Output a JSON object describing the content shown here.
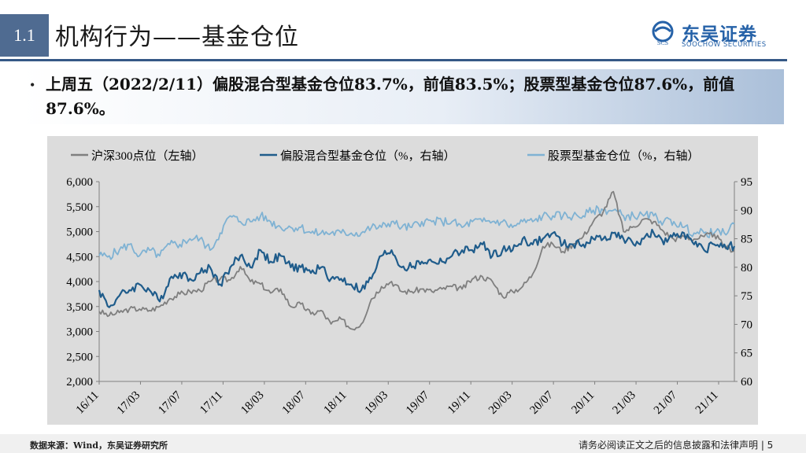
{
  "header": {
    "section_number": "1.1",
    "title": "机构行为——基金仓位"
  },
  "logo": {
    "cn": "东吴证券",
    "en": "SOOCHOW SECURITIES",
    "mark": "SCS"
  },
  "bullet": {
    "text": "上周五（2022/2/11）偏股混合型基金仓位83.7%，前值83.5%；股票型基金仓位87.6%，前值87.6%。"
  },
  "footer": {
    "source": "数据来源：Wind，东吴证券研究所",
    "disclaimer": "请务必阅读正文之后的信息披露和法律声明 | 5"
  },
  "colors": {
    "csi300": "#7f7f7f",
    "hybrid": "#1f5c8b",
    "stock": "#7fb2d3",
    "chart_bg": "#dcdcdc",
    "brand": "#2662a8"
  },
  "chart_data": {
    "type": "line",
    "grid": false,
    "legend_position": "top",
    "x_ticks": [
      "16/11",
      "17/03",
      "17/07",
      "17/11",
      "18/03",
      "18/07",
      "18/11",
      "19/03",
      "19/07",
      "19/11",
      "20/03",
      "20/07",
      "20/11",
      "21/03",
      "21/07",
      "21/11"
    ],
    "x_range": [
      "2016-11",
      "2022-02"
    ],
    "left_axis": {
      "min": 2000,
      "max": 6000,
      "ticks": [
        "2,000",
        "2,500",
        "3,000",
        "3,500",
        "4,000",
        "4,500",
        "5,000",
        "5,500",
        "6,000"
      ]
    },
    "right_axis": {
      "min": 60,
      "max": 95,
      "ticks": [
        "60",
        "65",
        "70",
        "75",
        "80",
        "85",
        "90",
        "95"
      ]
    },
    "series": [
      {
        "name": "沪深300点位（左轴）",
        "axis": "left",
        "color": "#7f7f7f",
        "x": [
          "2016-11",
          "2016-12",
          "2017-01",
          "2017-02",
          "2017-03",
          "2017-04",
          "2017-05",
          "2017-06",
          "2017-07",
          "2017-08",
          "2017-09",
          "2017-10",
          "2017-11",
          "2017-12",
          "2018-01",
          "2018-02",
          "2018-03",
          "2018-04",
          "2018-05",
          "2018-06",
          "2018-07",
          "2018-08",
          "2018-09",
          "2018-10",
          "2018-11",
          "2018-12",
          "2019-01",
          "2019-02",
          "2019-03",
          "2019-04",
          "2019-05",
          "2019-06",
          "2019-07",
          "2019-08",
          "2019-09",
          "2019-10",
          "2019-11",
          "2019-12",
          "2020-01",
          "2020-02",
          "2020-03",
          "2020-04",
          "2020-05",
          "2020-06",
          "2020-07",
          "2020-08",
          "2020-09",
          "2020-10",
          "2020-11",
          "2020-12",
          "2021-01",
          "2021-02",
          "2021-03",
          "2021-04",
          "2021-05",
          "2021-06",
          "2021-07",
          "2021-08",
          "2021-09",
          "2021-10",
          "2021-11",
          "2021-12",
          "2022-01",
          "2022-02"
        ],
        "values": [
          3400,
          3320,
          3380,
          3450,
          3450,
          3420,
          3500,
          3660,
          3750,
          3800,
          3820,
          4000,
          4050,
          4030,
          4300,
          4000,
          3950,
          3770,
          3850,
          3500,
          3550,
          3350,
          3420,
          3150,
          3250,
          3050,
          3150,
          3650,
          3900,
          4000,
          3800,
          3800,
          3850,
          3800,
          3850,
          3900,
          3850,
          4050,
          4100,
          4000,
          3700,
          3800,
          3900,
          4150,
          4700,
          4750,
          4600,
          4750,
          4900,
          5200,
          5400,
          5800,
          5000,
          5100,
          5250,
          5200,
          5000,
          4850,
          4900,
          4850,
          4900,
          4950,
          4700,
          4620
        ]
      },
      {
        "name": "偏股混合型基金仓位（%，右轴）",
        "axis": "right",
        "color": "#1f5c8b",
        "x": [
          "2016-11",
          "2016-12",
          "2017-01",
          "2017-02",
          "2017-03",
          "2017-04",
          "2017-05",
          "2017-06",
          "2017-07",
          "2017-08",
          "2017-09",
          "2017-10",
          "2017-11",
          "2017-12",
          "2018-01",
          "2018-02",
          "2018-03",
          "2018-04",
          "2018-05",
          "2018-06",
          "2018-07",
          "2018-08",
          "2018-09",
          "2018-10",
          "2018-11",
          "2018-12",
          "2019-01",
          "2019-02",
          "2019-03",
          "2019-04",
          "2019-05",
          "2019-06",
          "2019-07",
          "2019-08",
          "2019-09",
          "2019-10",
          "2019-11",
          "2019-12",
          "2020-01",
          "2020-02",
          "2020-03",
          "2020-04",
          "2020-05",
          "2020-06",
          "2020-07",
          "2020-08",
          "2020-09",
          "2020-10",
          "2020-11",
          "2020-12",
          "2021-01",
          "2021-02",
          "2021-03",
          "2021-04",
          "2021-05",
          "2021-06",
          "2021-07",
          "2021-08",
          "2021-09",
          "2021-10",
          "2021-11",
          "2021-12",
          "2022-01",
          "2022-02"
        ],
        "values": [
          76,
          73,
          75,
          76,
          77,
          76,
          74,
          78,
          79,
          78,
          79,
          80,
          77,
          80,
          82,
          80,
          83,
          81,
          82,
          80,
          80,
          79,
          80,
          78,
          78,
          77,
          76,
          78,
          82,
          83,
          80,
          80,
          81,
          81,
          81,
          82,
          83,
          83,
          84,
          82,
          83,
          83,
          85,
          84,
          85,
          86,
          84,
          84,
          84,
          85,
          85,
          86,
          85,
          84,
          85,
          86,
          84,
          86,
          86,
          84,
          83,
          84,
          84,
          83.7
        ]
      },
      {
        "name": "股票型基金仓位（%，右轴）",
        "axis": "right",
        "color": "#7fb2d3",
        "x": [
          "2016-11",
          "2016-12",
          "2017-01",
          "2017-02",
          "2017-03",
          "2017-04",
          "2017-05",
          "2017-06",
          "2017-07",
          "2017-08",
          "2017-09",
          "2017-10",
          "2017-11",
          "2017-12",
          "2018-01",
          "2018-02",
          "2018-03",
          "2018-04",
          "2018-05",
          "2018-06",
          "2018-07",
          "2018-08",
          "2018-09",
          "2018-10",
          "2018-11",
          "2018-12",
          "2019-01",
          "2019-02",
          "2019-03",
          "2019-04",
          "2019-05",
          "2019-06",
          "2019-07",
          "2019-08",
          "2019-09",
          "2019-10",
          "2019-11",
          "2019-12",
          "2020-01",
          "2020-02",
          "2020-03",
          "2020-04",
          "2020-05",
          "2020-06",
          "2020-07",
          "2020-08",
          "2020-09",
          "2020-10",
          "2020-11",
          "2020-12",
          "2021-01",
          "2021-02",
          "2021-03",
          "2021-04",
          "2021-05",
          "2021-06",
          "2021-07",
          "2021-08",
          "2021-09",
          "2021-10",
          "2021-11",
          "2021-12",
          "2022-01",
          "2022-02"
        ],
        "values": [
          82,
          82,
          83,
          84,
          82,
          83,
          82,
          84,
          84,
          85,
          85,
          83,
          86,
          89,
          88,
          88,
          89,
          88,
          87,
          87,
          87,
          86,
          86,
          86,
          86,
          86,
          86,
          87,
          87,
          88,
          87,
          87,
          88,
          88,
          88,
          88,
          87,
          88,
          88,
          88,
          88,
          87,
          88,
          88,
          89,
          89,
          89,
          89,
          89,
          90,
          90,
          90,
          89,
          89,
          89,
          89,
          88,
          88,
          87,
          86,
          86,
          86,
          86,
          87.6
        ]
      }
    ]
  }
}
